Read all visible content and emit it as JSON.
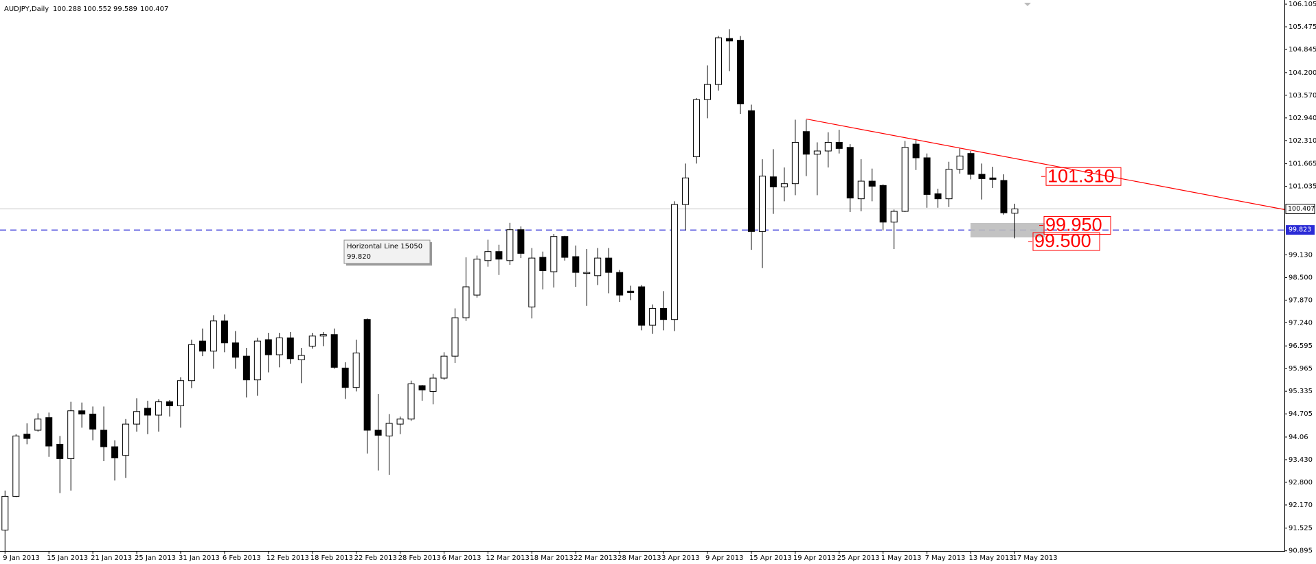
{
  "chart_data": {
    "type": "candlestick",
    "title": "AUDJPY,Daily",
    "categories": [
      "9 Jan 2013",
      null,
      null,
      null,
      "15 Jan 2013",
      null,
      null,
      null,
      "21 Jan 2013",
      null,
      null,
      null,
      "25 Jan 2013",
      null,
      null,
      null,
      "31 Jan 2013",
      null,
      null,
      null,
      "6 Feb 2013",
      null,
      null,
      null,
      "12 Feb 2013",
      null,
      null,
      null,
      "18 Feb 2013",
      null,
      null,
      null,
      "22 Feb 2013",
      null,
      null,
      null,
      "28 Feb 2013",
      null,
      null,
      null,
      "6 Mar 2013",
      null,
      null,
      null,
      "12 Mar 2013",
      null,
      null,
      null,
      "18 Mar 2013",
      null,
      null,
      null,
      "22 Mar 2013",
      null,
      null,
      null,
      "28 Mar 2013",
      null,
      null,
      null,
      "3 Apr 2013",
      null,
      null,
      null,
      "9 Apr 2013",
      null,
      null,
      null,
      "15 Apr 2013",
      null,
      null,
      null,
      "19 Apr 2013",
      null,
      null,
      null,
      "25 Apr 2013",
      null,
      null,
      null,
      "1 May 2013",
      null,
      null,
      null,
      "7 May 2013",
      null,
      null,
      null,
      "13 May 2013",
      null,
      null,
      null,
      "17 May 2013"
    ],
    "open": [
      91.47,
      92.41,
      94.14,
      94.25,
      94.6,
      93.86,
      93.46,
      94.79,
      94.7,
      94.25,
      93.79,
      93.55,
      94.42,
      94.86,
      94.67,
      95.04,
      94.93,
      95.63,
      96.73,
      96.45,
      97.29,
      96.68,
      96.31,
      95.65,
      96.77,
      96.35,
      96.82,
      96.21,
      96.59,
      96.87,
      96.91,
      95.98,
      95.44,
      97.33,
      94.25,
      94.09,
      94.42,
      94.56,
      95.49,
      95.33,
      95.7,
      96.31,
      97.38,
      98.01,
      98.97,
      99.22,
      98.97,
      99.83,
      97.68,
      99.06,
      98.66,
      99.64,
      99.08,
      98.61,
      98.55,
      99.04,
      98.64,
      98.12,
      98.24,
      97.17,
      97.64,
      97.33,
      100.53,
      101.86,
      103.45,
      103.87,
      105.15,
      105.1,
      103.14,
      99.78,
      101.3,
      101.02,
      101.11,
      102.56,
      101.93,
      102.02,
      102.26,
      102.12,
      100.69,
      101.18,
      101.06,
      100.04,
      100.34,
      102.21,
      101.83,
      100.83,
      100.69,
      101.51,
      101.95,
      101.37,
      101.27,
      101.2,
      100.288
    ],
    "high": [
      92.57,
      94.14,
      94.44,
      94.72,
      94.74,
      94.09,
      95.04,
      95.02,
      94.91,
      94.91,
      93.97,
      94.56,
      95.14,
      95.07,
      95.11,
      95.09,
      95.72,
      96.77,
      97.08,
      97.45,
      97.47,
      97.01,
      96.54,
      96.82,
      96.96,
      96.96,
      96.98,
      96.54,
      96.96,
      96.98,
      97.08,
      96.14,
      96.77,
      97.36,
      95.26,
      94.7,
      94.63,
      95.63,
      95.51,
      95.82,
      96.42,
      97.64,
      99.06,
      99.11,
      99.55,
      99.41,
      100.02,
      99.92,
      99.32,
      99.22,
      99.71,
      99.66,
      99.39,
      99.29,
      99.32,
      99.32,
      98.71,
      98.27,
      98.29,
      97.75,
      98.12,
      100.62,
      101.67,
      103.49,
      104.4,
      105.22,
      105.41,
      105.22,
      103.31,
      101.79,
      102.07,
      101.56,
      102.89,
      102.89,
      102.26,
      102.54,
      102.61,
      102.21,
      101.79,
      101.53,
      101.09,
      100.39,
      102.3,
      102.35,
      101.95,
      100.97,
      101.72,
      102.09,
      102.02,
      101.67,
      101.58,
      101.37,
      100.552
    ],
    "low": [
      90.82,
      92.39,
      93.86,
      94.21,
      93.51,
      92.5,
      92.57,
      94.32,
      93.97,
      93.39,
      92.85,
      92.92,
      94.21,
      94.14,
      94.21,
      94.63,
      94.32,
      95.42,
      96.31,
      95.96,
      96.42,
      95.96,
      95.16,
      95.21,
      95.86,
      96.0,
      96.1,
      95.56,
      96.52,
      96.59,
      95.96,
      95.12,
      95.33,
      93.6,
      93.13,
      93.01,
      94.14,
      94.51,
      95.07,
      94.97,
      95.65,
      96.12,
      97.29,
      97.94,
      98.8,
      98.57,
      98.85,
      99.04,
      97.36,
      98.17,
      98.22,
      98.97,
      98.24,
      97.71,
      98.29,
      98.06,
      97.82,
      97.87,
      97.03,
      96.93,
      97.03,
      97.01,
      99.81,
      101.67,
      102.93,
      103.7,
      104.24,
      103.05,
      99.27,
      98.76,
      100.27,
      100.62,
      100.79,
      101.32,
      100.79,
      101.56,
      101.95,
      100.32,
      100.34,
      100.62,
      99.81,
      99.29,
      100.32,
      101.49,
      100.44,
      100.44,
      100.46,
      101.39,
      101.23,
      100.67,
      100.99,
      100.25,
      99.589
    ],
    "close": [
      92.41,
      94.09,
      94.02,
      94.56,
      93.81,
      93.46,
      94.79,
      94.7,
      94.28,
      93.79,
      93.48,
      94.42,
      94.77,
      94.67,
      95.04,
      94.93,
      95.63,
      96.63,
      96.45,
      97.29,
      96.68,
      96.28,
      95.65,
      96.73,
      96.35,
      96.82,
      96.24,
      96.33,
      96.87,
      96.91,
      96.0,
      95.44,
      96.4,
      94.25,
      94.11,
      94.44,
      94.56,
      95.54,
      95.37,
      95.7,
      96.31,
      97.38,
      98.24,
      99.01,
      99.22,
      99.01,
      99.83,
      99.17,
      99.04,
      98.69,
      99.64,
      99.06,
      98.64,
      98.64,
      99.04,
      98.64,
      98.01,
      98.08,
      97.17,
      97.64,
      97.33,
      100.53,
      101.27,
      103.45,
      103.87,
      105.17,
      105.08,
      103.33,
      99.78,
      101.32,
      101.02,
      101.11,
      102.26,
      101.93,
      102.02,
      102.26,
      102.09,
      100.71,
      101.18,
      101.04,
      100.04,
      100.34,
      102.12,
      101.83,
      100.81,
      100.69,
      101.51,
      101.88,
      101.37,
      101.25,
      101.23,
      100.3,
      100.407
    ],
    "up_color": "#ffffff",
    "down_color": "#000000",
    "wick_color": "#000000",
    "ylim": [
      90.89,
      106.175
    ],
    "yticks": [
      106.105,
      105.475,
      104.845,
      {
        "value": 104.2,
        "label": "104.200"
      },
      {
        "value": 103.57,
        "label": "103.570"
      },
      {
        "value": 102.94,
        "label": "102.940"
      },
      {
        "value": 102.31,
        "label": "102.310"
      },
      101.665,
      101.035,
      {
        "value": 99.13,
        "label": "99.130"
      },
      {
        "value": 98.5,
        "label": "98.500"
      },
      {
        "value": 97.87,
        "label": "97.870"
      },
      {
        "value": 97.24,
        "label": "97.240"
      },
      96.595,
      95.965,
      95.335,
      94.705,
      94.06,
      {
        "value": 93.43,
        "label": "93.430"
      },
      {
        "value": 92.8,
        "label": "92.800"
      },
      {
        "value": 92.17,
        "label": "92.170"
      },
      91.525,
      90.895
    ],
    "horizontal_line": {
      "name": "Horizontal Line 15050",
      "value": 99.82,
      "label": "99.820"
    },
    "horizontal_line_price": 99.823,
    "horizontal_line_color": "#2b2bd6",
    "trendline": [
      102.91,
      100.39
    ],
    "trendline_color": "#ff0000",
    "annotations": [
      {
        "value": 101.31,
        "label": "101.310"
      },
      {
        "value": 99.95,
        "label": "99.950"
      },
      {
        "value": 99.5,
        "label": "99.500"
      }
    ],
    "annotation_color": "#ff0000"
  }
}
